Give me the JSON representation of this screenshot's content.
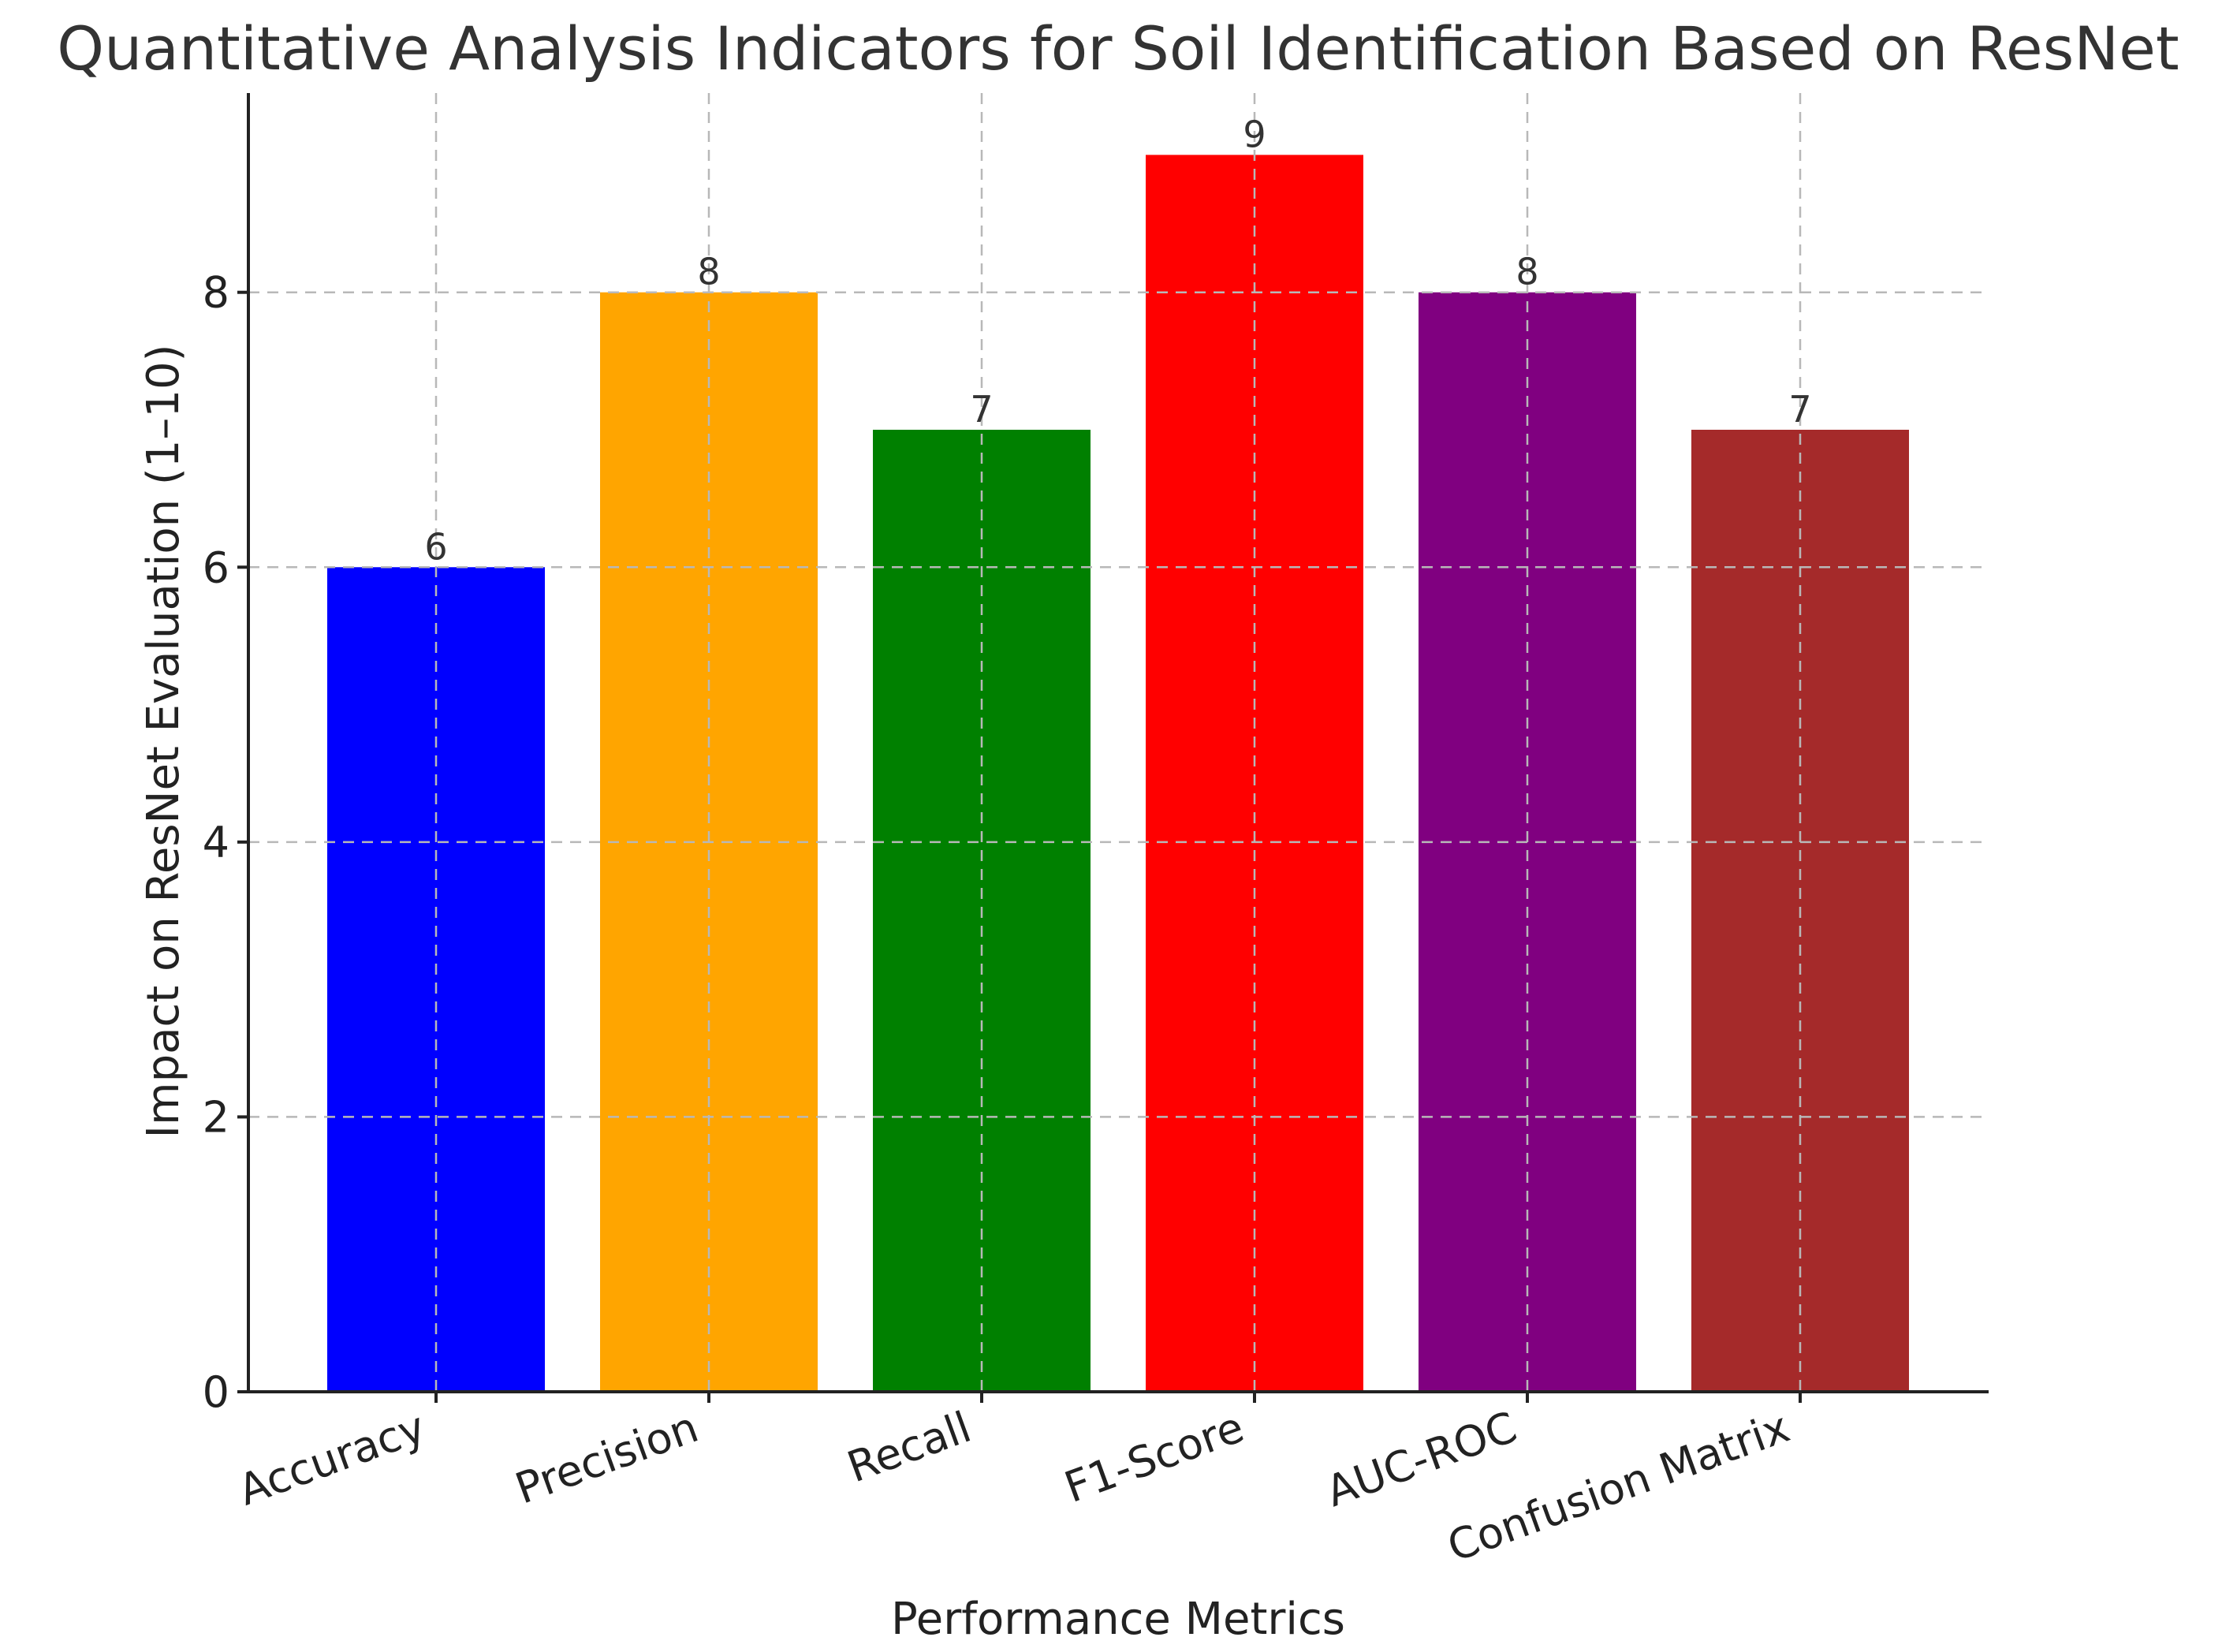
{
  "chart_data": {
    "type": "bar",
    "title": "Quantitative Analysis Indicators for Soil Identification Based on ResNet",
    "xlabel": "Performance Metrics",
    "ylabel": "Impact on ResNet Evaluation (1–10)",
    "categories": [
      "Accuracy",
      "Precision",
      "Recall",
      "F1-Score",
      "AUC-ROC",
      "Confusion Matrix"
    ],
    "values": [
      6,
      8,
      7,
      9,
      8,
      7
    ],
    "colors": [
      "#0000ff",
      "#ffa500",
      "#008000",
      "#ff0000",
      "#800080",
      "#a52a2a"
    ],
    "ylim": [
      0,
      9.45
    ],
    "yticks": [
      0,
      2,
      4,
      6,
      8
    ],
    "grid": true,
    "bar_labels": true,
    "xtick_rotation": 20
  }
}
